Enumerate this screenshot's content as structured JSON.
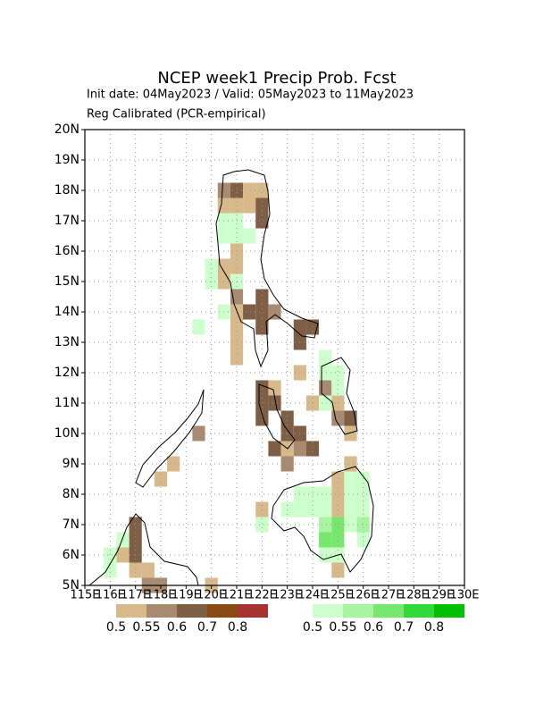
{
  "chart_data": {
    "type": "grid-map",
    "title": "NCEP week1 Precip Prob. Fcst",
    "subtitle": "Init date: 04May2023 / Valid: 05May2023 to 11May2023",
    "note": "Reg Calibrated (PCR-empirical)",
    "xlim": [
      115,
      130
    ],
    "ylim": [
      5,
      20
    ],
    "xticks": [
      {
        "value": 115,
        "label": "115E"
      },
      {
        "value": 116,
        "label": "116E"
      },
      {
        "value": 117,
        "label": "117E"
      },
      {
        "value": 118,
        "label": "118E"
      },
      {
        "value": 119,
        "label": "119E"
      },
      {
        "value": 120,
        "label": "120E"
      },
      {
        "value": 121,
        "label": "121E"
      },
      {
        "value": 122,
        "label": "122E"
      },
      {
        "value": 123,
        "label": "123E"
      },
      {
        "value": 124,
        "label": "124E"
      },
      {
        "value": 125,
        "label": "125E"
      },
      {
        "value": 126,
        "label": "126E"
      },
      {
        "value": 127,
        "label": "127E"
      },
      {
        "value": 128,
        "label": "128E"
      },
      {
        "value": 129,
        "label": "129E"
      },
      {
        "value": 130,
        "label": "130E"
      }
    ],
    "yticks": [
      {
        "value": 5,
        "label": "5N"
      },
      {
        "value": 6,
        "label": "6N"
      },
      {
        "value": 7,
        "label": "7N"
      },
      {
        "value": 8,
        "label": "8N"
      },
      {
        "value": 9,
        "label": "9N"
      },
      {
        "value": 10,
        "label": "10N"
      },
      {
        "value": 11,
        "label": "11N"
      },
      {
        "value": 12,
        "label": "12N"
      },
      {
        "value": 13,
        "label": "13N"
      },
      {
        "value": 14,
        "label": "14N"
      },
      {
        "value": 15,
        "label": "15N"
      },
      {
        "value": 16,
        "label": "16N"
      },
      {
        "value": 17,
        "label": "17N"
      },
      {
        "value": 18,
        "label": "18N"
      },
      {
        "value": 19,
        "label": "19N"
      },
      {
        "value": 20,
        "label": "20N"
      }
    ],
    "grid": true,
    "series": [
      {
        "levels": [
          0.5,
          0.55,
          0.6,
          0.7,
          0.8
        ],
        "colors": [
          "#d8b98c",
          "#a88a70",
          "#7e5e44",
          "#8a4a14",
          "#a83232"
        ],
        "cells": [
          [
            120.5,
            18,
            0.55
          ],
          [
            121,
            18,
            0.6
          ],
          [
            121.5,
            18,
            0.5
          ],
          [
            122,
            18,
            0.5
          ],
          [
            120.5,
            17.5,
            0.5
          ],
          [
            121,
            17.5,
            0.5
          ],
          [
            121.5,
            17.5,
            0.5
          ],
          [
            122,
            17.5,
            0.6
          ],
          [
            122,
            17,
            0.6
          ],
          [
            121,
            16,
            0.5
          ],
          [
            120.5,
            15.5,
            0.5
          ],
          [
            121,
            15.5,
            0.5
          ],
          [
            120.5,
            15,
            0.5
          ],
          [
            121,
            14.5,
            0.55
          ],
          [
            122,
            14.5,
            0.6
          ],
          [
            121,
            14,
            0.5
          ],
          [
            121.5,
            14,
            0.6
          ],
          [
            122,
            14,
            0.6
          ],
          [
            122.5,
            14,
            0.55
          ],
          [
            121,
            13.5,
            0.5
          ],
          [
            122,
            13.5,
            0.6
          ],
          [
            123.5,
            13.5,
            0.6
          ],
          [
            124,
            13.5,
            0.6
          ],
          [
            121,
            13,
            0.5
          ],
          [
            123.5,
            13,
            0.6
          ],
          [
            121,
            12.5,
            0.5
          ],
          [
            123.5,
            12,
            0.5
          ],
          [
            122,
            11.5,
            0.6
          ],
          [
            122.5,
            11.5,
            0.5
          ],
          [
            124.5,
            11.5,
            0.55
          ],
          [
            122,
            11,
            0.6
          ],
          [
            122.5,
            11,
            0.6
          ],
          [
            124,
            11,
            0.5
          ],
          [
            125,
            11,
            0.5
          ],
          [
            122,
            10.5,
            0.6
          ],
          [
            123,
            10.5,
            0.6
          ],
          [
            125,
            10.5,
            0.55
          ],
          [
            125.5,
            10.5,
            0.6
          ],
          [
            119.5,
            10,
            0.55
          ],
          [
            123,
            10,
            0.6
          ],
          [
            123.5,
            10,
            0.6
          ],
          [
            125.5,
            10,
            0.5
          ],
          [
            122.5,
            9.5,
            0.6
          ],
          [
            123,
            9.5,
            0.5
          ],
          [
            123.5,
            9.5,
            0.55
          ],
          [
            124,
            9.5,
            0.6
          ],
          [
            118.5,
            9,
            0.5
          ],
          [
            123,
            9,
            0.55
          ],
          [
            125.5,
            9,
            0.5
          ],
          [
            118,
            8.5,
            0.5
          ],
          [
            125,
            8.5,
            0.5
          ],
          [
            125,
            8,
            0.5
          ],
          [
            122,
            7.5,
            0.5
          ],
          [
            125,
            7.5,
            0.5
          ],
          [
            117,
            7,
            0.6
          ],
          [
            117,
            6.5,
            0.6
          ],
          [
            116.5,
            6,
            0.5
          ],
          [
            117,
            6,
            0.6
          ],
          [
            117,
            5.5,
            0.5
          ],
          [
            117.5,
            5.5,
            0.5
          ],
          [
            125,
            5.5,
            0.5
          ],
          [
            117.5,
            5,
            0.55
          ],
          [
            118,
            5,
            0.55
          ],
          [
            120,
            5,
            0.5
          ]
        ]
      },
      {
        "levels": [
          0.5,
          0.55,
          0.6,
          0.7,
          0.8
        ],
        "colors": [
          "#ccffcc",
          "#a8f5a0",
          "#77e86e",
          "#33d83a",
          "#00c000"
        ],
        "cells": [
          [
            120.5,
            17,
            0.5
          ],
          [
            121,
            17,
            0.5
          ],
          [
            120.5,
            16.5,
            0.5
          ],
          [
            121,
            16.5,
            0.5
          ],
          [
            121.5,
            16.5,
            0.5
          ],
          [
            120,
            15.5,
            0.5
          ],
          [
            120,
            15,
            0.5
          ],
          [
            121,
            15,
            0.5
          ],
          [
            120.5,
            14,
            0.5
          ],
          [
            119.5,
            13.5,
            0.5
          ],
          [
            124.5,
            12.5,
            0.5
          ],
          [
            124.5,
            12,
            0.5
          ],
          [
            125,
            12,
            0.5
          ],
          [
            125,
            11.5,
            0.5
          ],
          [
            124.5,
            11,
            0.5
          ],
          [
            125.5,
            8.5,
            0.5
          ],
          [
            126,
            8.5,
            0.5
          ],
          [
            123.5,
            8,
            0.5
          ],
          [
            124,
            8,
            0.5
          ],
          [
            124.5,
            8,
            0.5
          ],
          [
            125.5,
            8,
            0.5
          ],
          [
            126,
            8,
            0.5
          ],
          [
            123,
            7.5,
            0.5
          ],
          [
            123.5,
            7.5,
            0.5
          ],
          [
            124,
            7.5,
            0.5
          ],
          [
            124.5,
            7.5,
            0.5
          ],
          [
            125.5,
            7.5,
            0.5
          ],
          [
            126,
            7.5,
            0.5
          ],
          [
            122,
            7,
            0.5
          ],
          [
            124.5,
            7,
            0.55
          ],
          [
            125,
            7,
            0.6
          ],
          [
            125.5,
            7,
            0.5
          ],
          [
            126,
            7,
            0.55
          ],
          [
            116.5,
            6.5,
            0.5
          ],
          [
            124.5,
            6.5,
            0.6
          ],
          [
            125,
            6.5,
            0.6
          ],
          [
            126,
            6.5,
            0.5
          ],
          [
            116,
            6,
            0.5
          ],
          [
            124.5,
            6,
            0.5
          ],
          [
            125,
            6,
            0.5
          ],
          [
            116,
            5.5,
            0.5
          ]
        ]
      }
    ]
  }
}
